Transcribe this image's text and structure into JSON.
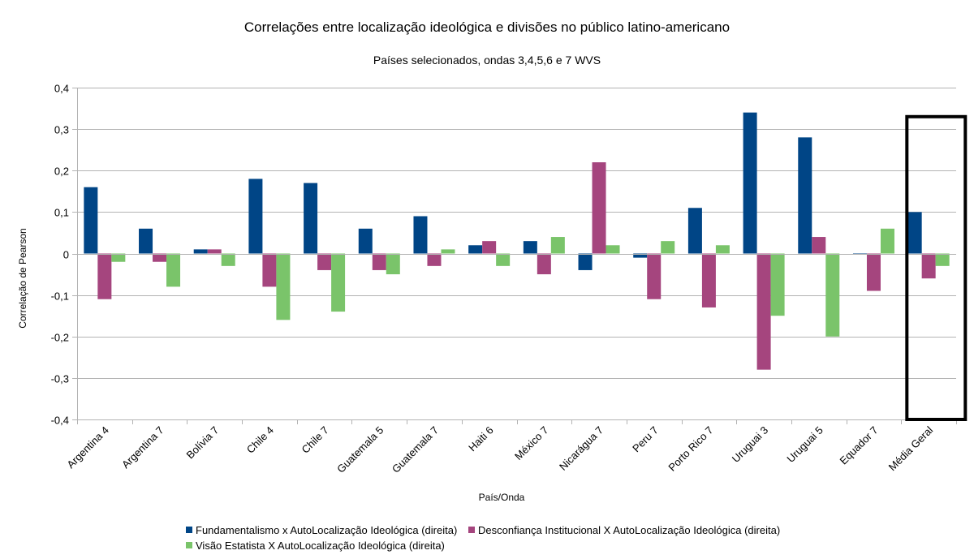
{
  "chart_data": {
    "type": "bar",
    "title": "Correlações entre localização ideológica e divisões no público latino-americano",
    "subtitle": "Países selecionados, ondas 3,4,5,6 e 7 WVS",
    "xlabel": "País/Onda",
    "ylabel": "Correlação de Pearson",
    "ylim": [
      -0.4,
      0.4
    ],
    "yticks": [
      0.4,
      0.3,
      0.2,
      0.1,
      0,
      -0.1,
      -0.2,
      -0.3,
      -0.4
    ],
    "ytick_labels": [
      "0,4",
      "0,3",
      "0,2",
      "0,1",
      "0",
      "-0,1",
      "-0,2",
      "-0,3",
      "-0,4"
    ],
    "grid": true,
    "categories": [
      "Argentina 4",
      "Argentina 7",
      "Bolívia 7",
      "Chile 4",
      "Chile 7",
      "Guatemala 5",
      "Guatemala 7",
      "Haiti 6",
      "México 7",
      "Nicarágua 7",
      "Peru 7",
      "Porto Rico 7",
      "Uruguai 3",
      "Uruguai 5",
      "Equador 7",
      "Média Geral"
    ],
    "series": [
      {
        "name": "Fundamentalismo x AutoLocalização Ideológica (direita)",
        "color": "#004586",
        "values": [
          0.16,
          0.06,
          0.01,
          0.18,
          0.17,
          0.06,
          0.09,
          0.02,
          0.03,
          -0.04,
          -0.01,
          0.11,
          0.34,
          0.28,
          0.0,
          0.1
        ]
      },
      {
        "name": "Desconfiança Institucional X AutoLocalização Ideológica (direita)",
        "color": "#a5457e",
        "values": [
          -0.11,
          -0.02,
          0.01,
          -0.08,
          -0.04,
          -0.04,
          -0.03,
          0.03,
          -0.05,
          0.22,
          -0.11,
          -0.13,
          -0.28,
          0.04,
          -0.09,
          -0.06
        ]
      },
      {
        "name": "Visão Estatista X AutoLocalização Ideológica (direita)",
        "color": "#7ac46a",
        "values": [
          -0.02,
          -0.08,
          -0.03,
          -0.16,
          -0.14,
          -0.05,
          0.01,
          -0.03,
          0.04,
          0.02,
          0.03,
          0.02,
          -0.15,
          -0.2,
          0.06,
          -0.03
        ]
      }
    ],
    "highlight": {
      "category": "Média Geral",
      "style": "black rectangle"
    },
    "legend_position": "bottom"
  }
}
